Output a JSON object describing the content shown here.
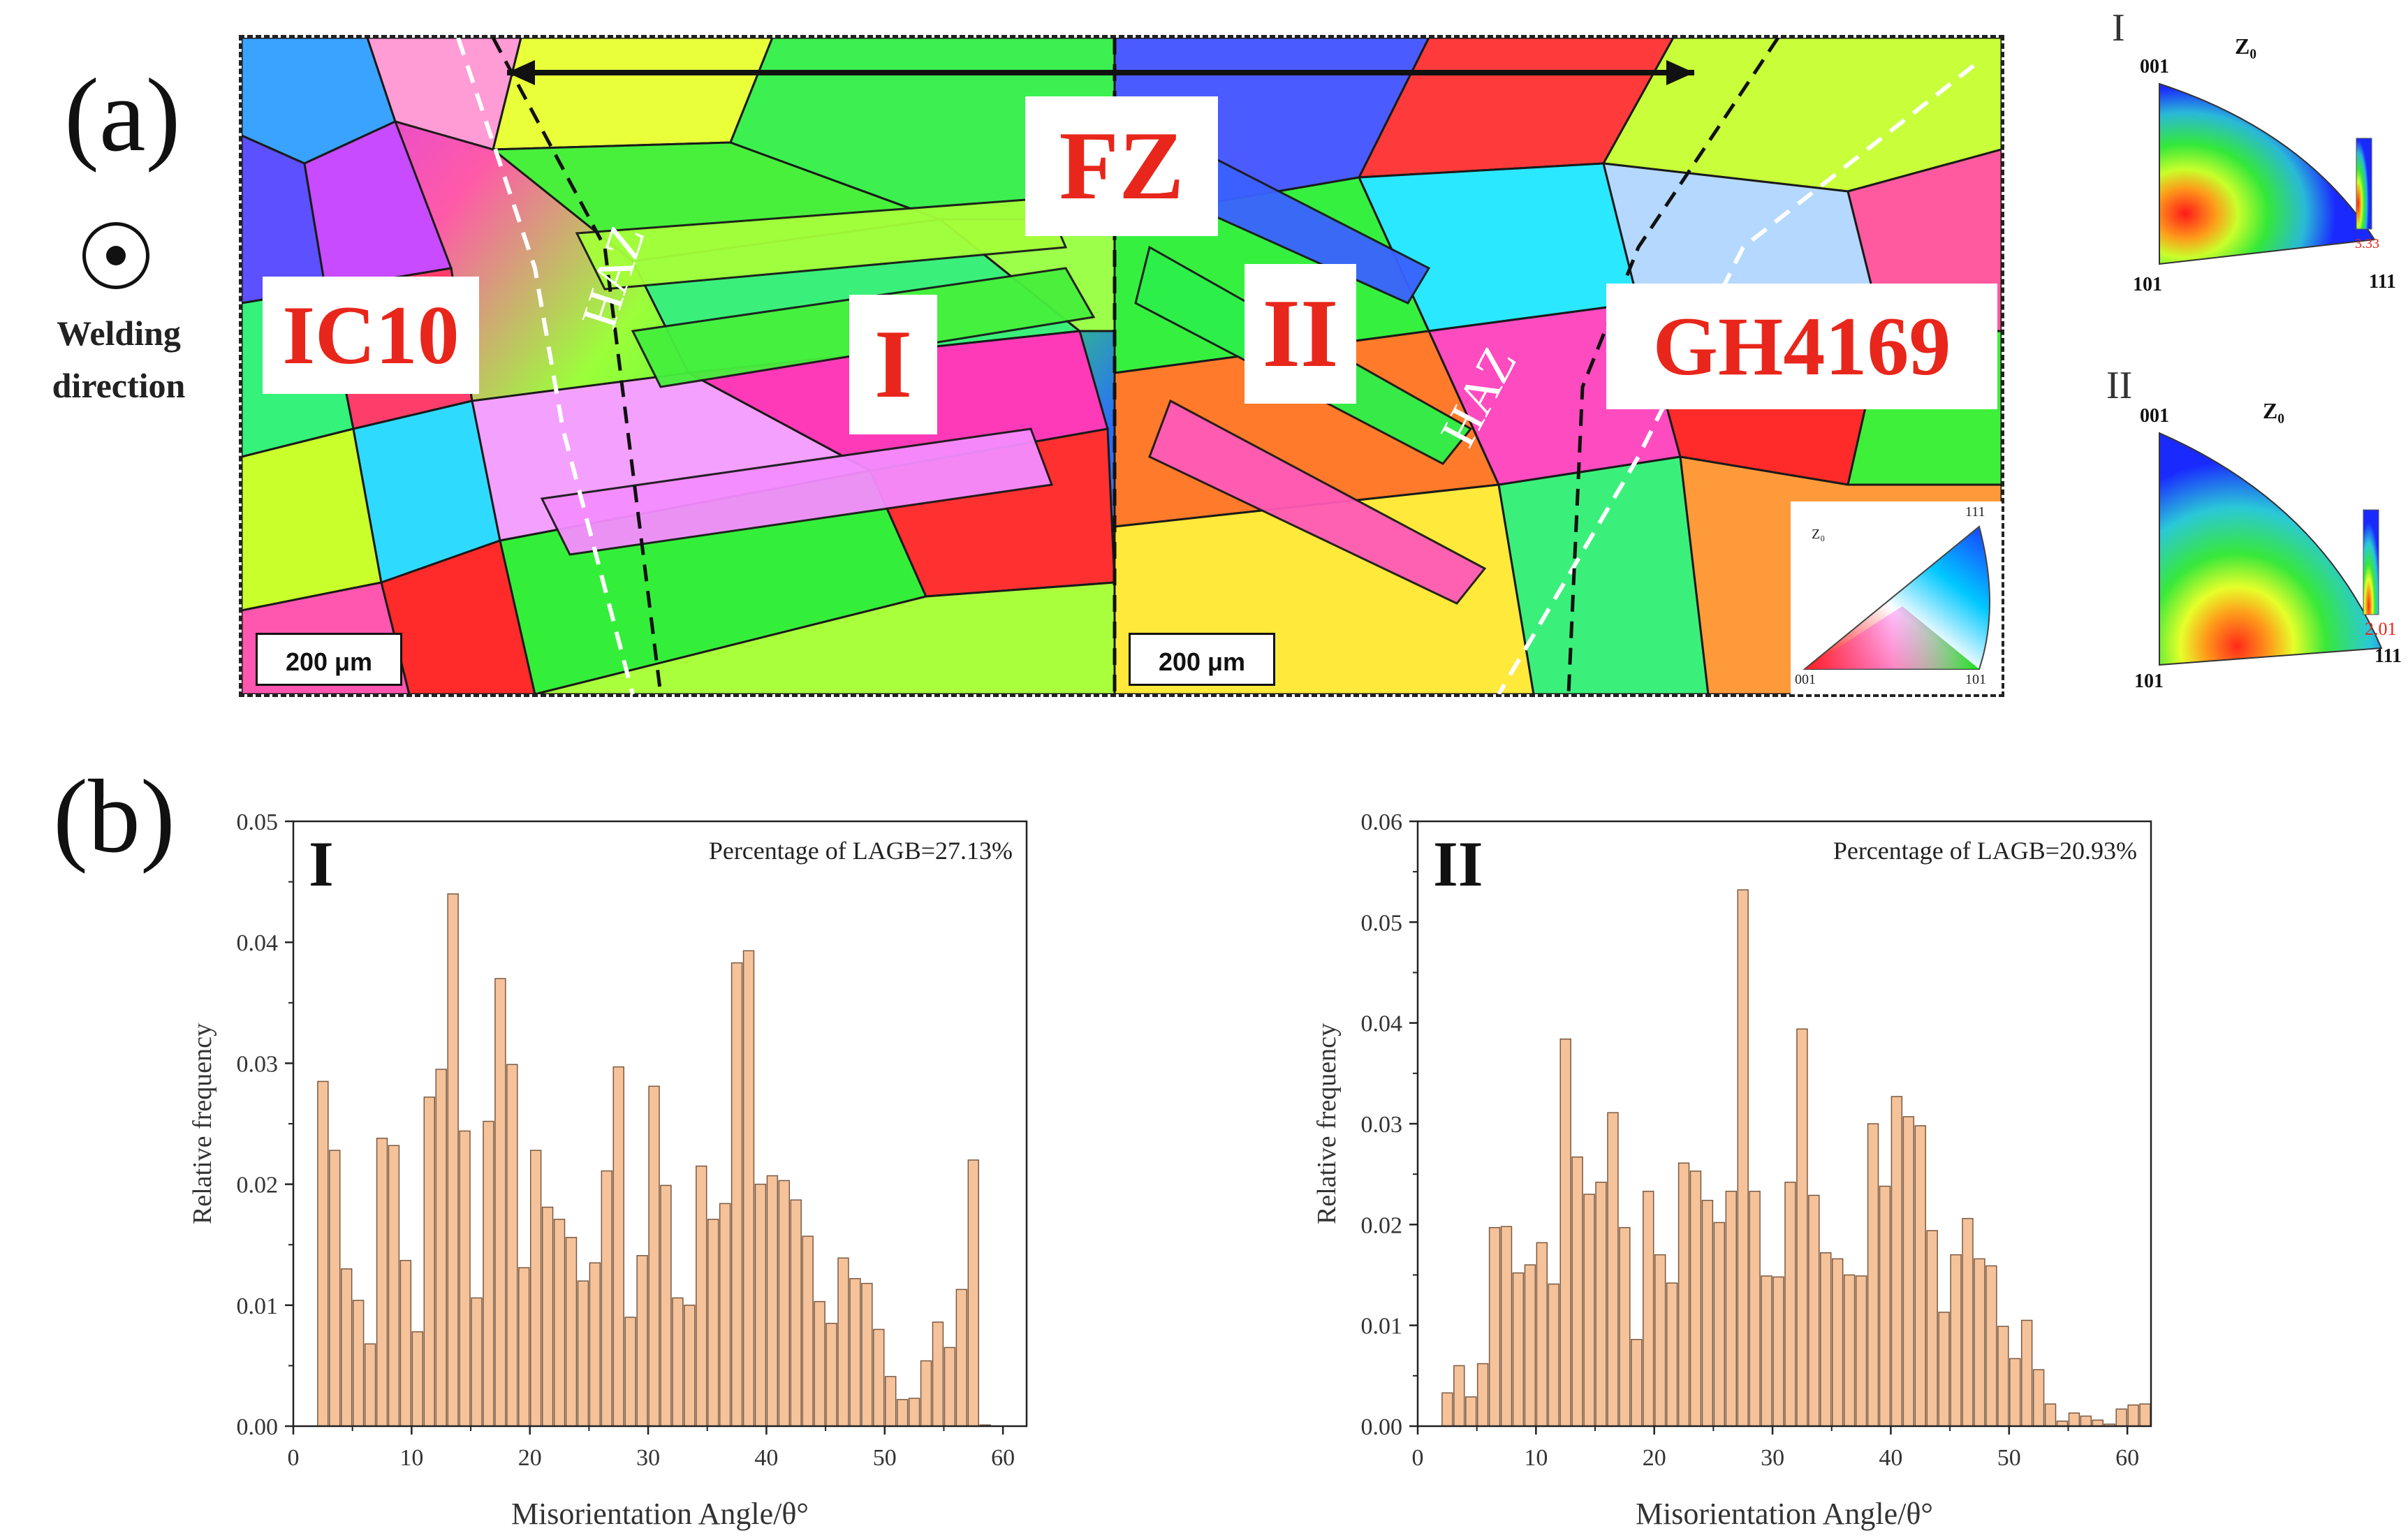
{
  "figure": {
    "panel_a_label": "(a)",
    "panel_b_label": "(b)",
    "welding_direction": "Welding\ndirection",
    "zones": {
      "left_base": "IC10",
      "fusion_zone": "FZ",
      "region_one": "I",
      "region_two": "II",
      "right_base": "GH4169",
      "haz_left": "HAZ",
      "haz_right": "HAZ"
    },
    "scalebar_left": "200 μm",
    "scalebar_right": "200 μm",
    "ipf_legend": {
      "corner_111": "111",
      "corner_001": "001",
      "corner_101": "101",
      "axis": "Z₀"
    },
    "pole_figures": [
      {
        "label": "I",
        "axis": "Z₀",
        "corner_001": "001",
        "corner_101": "101",
        "corner_111": "111",
        "max": "3.33"
      },
      {
        "label": "II",
        "axis": "Z₀",
        "corner_001": "001",
        "corner_101": "101",
        "corner_111": "111",
        "max": "2.01"
      }
    ],
    "colors": {
      "tag_text": "#e8261b",
      "bar_fill": "#f5c29a",
      "bar_stroke": "#7a5a42"
    }
  },
  "chart_data": [
    {
      "type": "bar",
      "panel": "I",
      "annotation": "Percentage of LAGB=27.13%",
      "xlabel": "Misorientation Angle/θ°",
      "ylabel": "Relative frequency",
      "xlim": [
        0,
        62
      ],
      "ylim": [
        0,
        0.05
      ],
      "xticks": [
        "0",
        "10",
        "20",
        "30",
        "40",
        "50",
        "60"
      ],
      "yticks": [
        "0.00",
        "0.01",
        "0.02",
        "0.03",
        "0.04",
        "0.05"
      ],
      "bin_start": 2,
      "bin_width": 1,
      "values": [
        0.0285,
        0.0228,
        0.013,
        0.0104,
        0.0068,
        0.0238,
        0.0232,
        0.0137,
        0.0078,
        0.0272,
        0.0295,
        0.044,
        0.0244,
        0.0106,
        0.0252,
        0.037,
        0.0299,
        0.0131,
        0.0228,
        0.0181,
        0.0171,
        0.0156,
        0.012,
        0.0135,
        0.0211,
        0.0297,
        0.009,
        0.0141,
        0.0281,
        0.0199,
        0.0106,
        0.01,
        0.0215,
        0.0171,
        0.0184,
        0.0383,
        0.0393,
        0.02,
        0.0207,
        0.0203,
        0.0187,
        0.0157,
        0.0103,
        0.0085,
        0.0139,
        0.0122,
        0.0118,
        0.008,
        0.0041,
        0.0022,
        0.0023,
        0.0054,
        0.0086,
        0.0065,
        0.0113,
        0.022,
        0.0001
      ]
    },
    {
      "type": "bar",
      "panel": "II",
      "annotation": "Percentage of LAGB=20.93%",
      "xlabel": "Misorientation Angle/θ°",
      "ylabel": "Relative frequency",
      "xlim": [
        0,
        62
      ],
      "ylim": [
        0,
        0.06
      ],
      "xticks": [
        "0",
        "10",
        "20",
        "30",
        "40",
        "50",
        "60"
      ],
      "yticks": [
        "0.00",
        "0.01",
        "0.02",
        "0.03",
        "0.04",
        "0.05",
        "0.06"
      ],
      "bin_start": 2,
      "bin_width": 1,
      "values": [
        0.0033,
        0.006,
        0.0029,
        0.0062,
        0.0197,
        0.0198,
        0.0152,
        0.016,
        0.0182,
        0.0141,
        0.0384,
        0.0267,
        0.023,
        0.0242,
        0.0311,
        0.0197,
        0.0086,
        0.0233,
        0.017,
        0.0142,
        0.0261,
        0.0253,
        0.0224,
        0.0202,
        0.0233,
        0.0532,
        0.0233,
        0.0149,
        0.0148,
        0.0242,
        0.0394,
        0.0229,
        0.0172,
        0.0166,
        0.015,
        0.0149,
        0.03,
        0.0238,
        0.0327,
        0.0307,
        0.0298,
        0.0194,
        0.0113,
        0.017,
        0.0206,
        0.0166,
        0.0159,
        0.0099,
        0.0067,
        0.0105,
        0.0056,
        0.0022,
        0.0005,
        0.0013,
        0.001,
        0.0006,
        0.0002,
        0.0017,
        0.0021,
        0.0022
      ]
    }
  ]
}
